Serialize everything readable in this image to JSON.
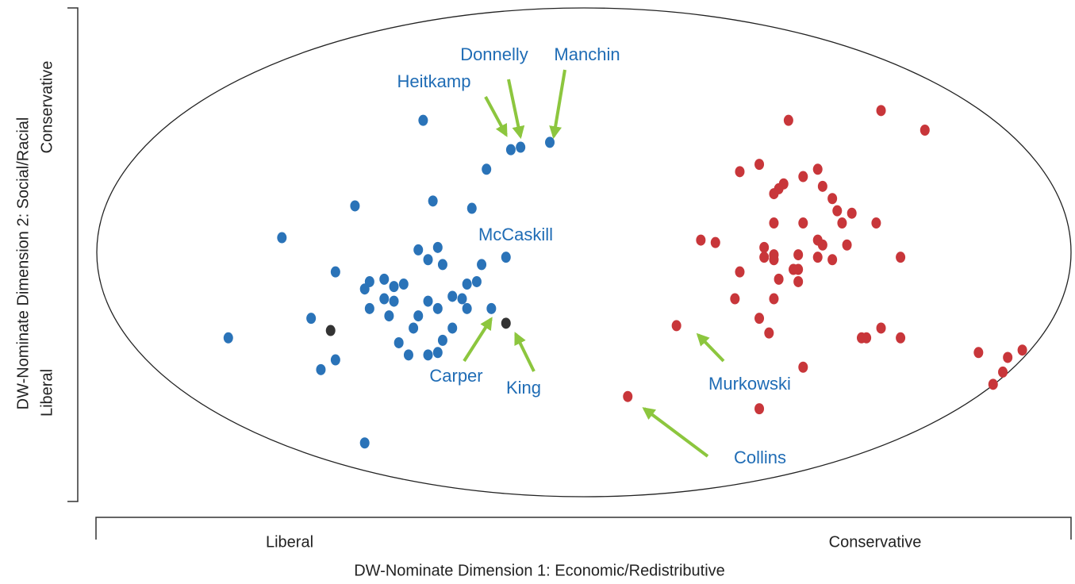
{
  "chart_data": {
    "type": "scatter",
    "xlabel": "DW-Nominate Dimension 1: Economic/Redistributive",
    "x_pole_labels": [
      "Liberal",
      "Conservative"
    ],
    "ylabel": "DW-Nominate Dimension 2: Social/Racial",
    "y_pole_labels": [
      "Liberal",
      "Conservative"
    ],
    "xlim": [
      -1,
      1
    ],
    "ylim": [
      -1,
      1
    ],
    "annotations": [
      "Heitkamp",
      "Donnelly",
      "Manchin",
      "McCaskill",
      "Carper",
      "King",
      "Murkowski",
      "Collins"
    ],
    "series": [
      {
        "color": "#2a73b8",
        "x": [
          -0.33,
          -0.15,
          -0.13,
          -0.07,
          -0.2,
          -0.31,
          -0.47,
          -0.23,
          -0.62,
          -0.34,
          -0.3,
          -0.16,
          -0.32,
          -0.29,
          -0.21,
          -0.51,
          -0.44,
          -0.41,
          -0.37,
          -0.45,
          -0.39,
          -0.22,
          -0.24,
          -0.41,
          -0.39,
          -0.44,
          -0.32,
          -0.27,
          -0.25,
          -0.24,
          -0.3,
          -0.19,
          -0.56,
          -0.4,
          -0.34,
          -0.35,
          -0.27,
          -0.38,
          -0.29,
          -0.36,
          -0.32,
          -0.3,
          -0.73,
          -0.51,
          -0.54,
          -0.45
        ],
        "values": [
          0.54,
          0.42,
          0.43,
          0.45,
          0.34,
          0.21,
          0.19,
          0.18,
          0.06,
          0.01,
          0.02,
          -0.02,
          -0.03,
          -0.05,
          -0.05,
          -0.08,
          -0.12,
          -0.11,
          -0.13,
          -0.15,
          -0.14,
          -0.12,
          -0.13,
          -0.19,
          -0.2,
          -0.23,
          -0.2,
          -0.18,
          -0.19,
          -0.23,
          -0.23,
          -0.23,
          -0.27,
          -0.26,
          -0.26,
          -0.31,
          -0.31,
          -0.37,
          -0.36,
          -0.42,
          -0.42,
          -0.41,
          -0.35,
          -0.44,
          -0.48,
          -0.78
        ]
      },
      {
        "color": "#333333",
        "x": [
          -0.52,
          -0.16
        ],
        "values": [
          -0.32,
          -0.29
        ]
      },
      {
        "color": "#c8363a",
        "x": [
          0.61,
          0.42,
          0.7,
          0.36,
          0.32,
          0.48,
          0.45,
          0.41,
          0.4,
          0.39,
          0.49,
          0.51,
          0.52,
          0.55,
          0.53,
          0.6,
          0.39,
          0.45,
          0.24,
          0.27,
          0.48,
          0.49,
          0.54,
          0.37,
          0.39,
          0.44,
          0.37,
          0.39,
          0.48,
          0.51,
          0.65,
          0.43,
          0.44,
          0.32,
          0.4,
          0.44,
          0.31,
          0.39,
          0.36,
          0.61,
          0.38,
          0.57,
          0.58,
          0.65,
          0.19,
          0.81,
          0.87,
          0.9,
          0.45,
          0.86,
          0.84,
          0.36,
          0.09
        ],
        "values": [
          0.58,
          0.54,
          0.5,
          0.36,
          0.33,
          0.34,
          0.31,
          0.28,
          0.26,
          0.24,
          0.27,
          0.22,
          0.17,
          0.16,
          0.12,
          0.12,
          0.12,
          0.12,
          0.05,
          0.04,
          0.05,
          0.03,
          0.03,
          0.02,
          -0.01,
          -0.01,
          -0.02,
          -0.03,
          -0.02,
          -0.03,
          -0.02,
          -0.07,
          -0.07,
          -0.08,
          -0.11,
          -0.12,
          -0.19,
          -0.19,
          -0.27,
          -0.31,
          -0.33,
          -0.35,
          -0.35,
          -0.35,
          -0.3,
          -0.41,
          -0.43,
          -0.4,
          -0.47,
          -0.49,
          -0.54,
          -0.64,
          -0.59
        ]
      }
    ]
  }
}
